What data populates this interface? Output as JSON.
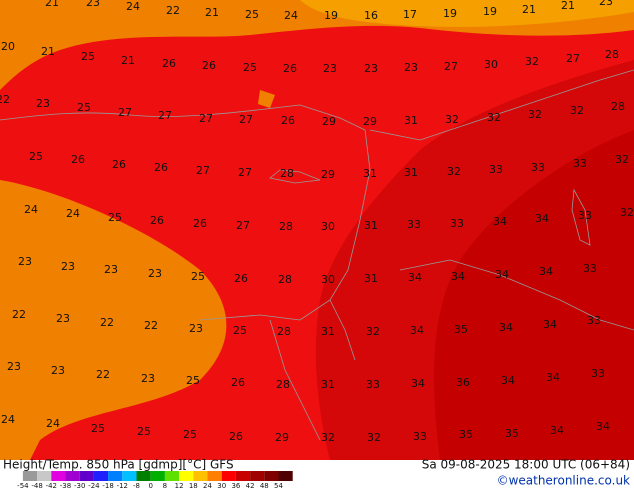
{
  "footer": {
    "left": "Height/Temp. 850 hPa [gdmp][°C] GFS",
    "right": "Sa 09-08-2025 18:00 UTC (06+84)",
    "credit": "©weatheronline.co.uk"
  },
  "colorbar": {
    "ticks": [
      -54,
      -48,
      -42,
      -38,
      -30,
      -24,
      -18,
      -12,
      -8,
      0,
      8,
      12,
      18,
      24,
      30,
      36,
      42,
      48,
      54
    ],
    "colors": [
      "#9a9a9a",
      "#c8c8c8",
      "#e000e0",
      "#a000d0",
      "#6000c8",
      "#2020ff",
      "#0080ff",
      "#00c0ff",
      "#008000",
      "#00b000",
      "#60e000",
      "#ffff00",
      "#ffc000",
      "#ff8000",
      "#ff0000",
      "#c80000",
      "#a00000",
      "#800000",
      "#500000"
    ]
  },
  "temperature_labels": [
    21,
    23,
    24,
    22,
    21,
    25,
    24,
    19,
    16,
    17,
    19,
    19,
    21,
    21,
    23,
    20,
    21,
    25,
    21,
    26,
    26,
    25,
    26,
    23,
    23,
    23,
    27,
    30,
    32,
    27,
    28,
    22,
    23,
    25,
    27,
    27,
    27,
    27,
    26,
    29,
    29,
    31,
    32,
    32,
    32,
    32,
    28,
    25,
    26,
    26,
    26,
    27,
    27,
    28,
    29,
    31,
    31,
    32,
    33,
    33,
    33,
    32,
    24,
    24,
    25,
    26,
    26,
    27,
    28,
    30,
    31,
    33,
    33,
    34,
    34,
    33,
    32,
    23,
    23,
    23,
    23,
    25,
    26,
    28,
    30,
    31,
    34,
    34,
    34,
    34,
    33,
    22,
    23,
    22,
    22,
    23,
    25,
    28,
    31,
    32,
    34,
    35,
    34,
    34,
    33,
    23,
    23,
    22,
    23,
    25,
    26,
    28,
    31,
    33,
    34,
    36,
    34,
    34,
    33,
    24,
    24,
    25,
    25,
    25,
    26,
    29,
    32,
    32,
    33,
    35,
    35,
    34,
    34
  ]
}
